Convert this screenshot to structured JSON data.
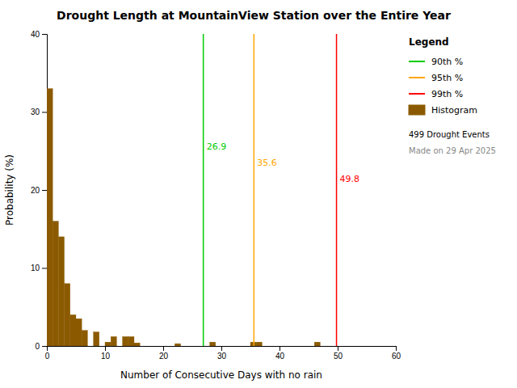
{
  "chart_data": {
    "type": "histogram",
    "title": "Drought Length at MountainView Station over the Entire Year",
    "x_label": "Number of Consecutive Days with no rain",
    "y_label": "Probability (%)",
    "name": "Histogram",
    "color": "#8B5A00",
    "bins": [
      0,
      1,
      2,
      3,
      4,
      5,
      6,
      7,
      8,
      9,
      10,
      11,
      12,
      13,
      14,
      15,
      16,
      17,
      18,
      19,
      20,
      21,
      22,
      23,
      24,
      25,
      26,
      27,
      28,
      29,
      30,
      31,
      32,
      33,
      34,
      35,
      36,
      37,
      38,
      39,
      40,
      41,
      42,
      43,
      44,
      45,
      46,
      47,
      48,
      49,
      50,
      51,
      52,
      53,
      54,
      55,
      56,
      57,
      58,
      59,
      60
    ],
    "values": [
      33.0,
      16.0,
      14.0,
      8.0,
      4.0,
      3.5,
      2.0,
      0.0,
      1.8,
      0.0,
      0.5,
      1.2,
      0.0,
      1.2,
      1.2,
      0.4,
      0.0,
      0.0,
      0.0,
      0.0,
      0.0,
      0.0,
      0.3,
      0.0,
      0.0,
      0.0,
      0.0,
      0.0,
      0.5,
      0.0,
      0.0,
      0.0,
      0.0,
      0.0,
      0.0,
      0.5,
      0.5,
      0.0,
      0.0,
      0.0,
      0.0,
      0.0,
      0.0,
      0.0,
      0.0,
      0.0,
      0.5,
      0.0,
      0.0,
      0.0,
      0.0,
      0.0,
      0.0,
      0.0,
      0.0,
      0.0,
      0.0,
      0.0,
      0.0,
      0.0
    ],
    "vlines": [
      {
        "name": "90th %",
        "value": 26.9,
        "label": "26.9",
        "color": "#00CC00"
      },
      {
        "name": "95th %",
        "value": 35.6,
        "label": "35.6",
        "color": "#FFA500"
      },
      {
        "name": "99th %",
        "value": 49.8,
        "label": "49.8",
        "color": "#FF0000"
      }
    ],
    "xlim": [
      0,
      60
    ],
    "ylim": [
      0,
      40
    ],
    "xticks": [
      0,
      10,
      20,
      30,
      40,
      50,
      60
    ],
    "yticks": [
      0,
      10,
      20,
      30,
      40
    ],
    "grid": false,
    "legend": "upper right",
    "legend_title": "Legend",
    "annotations": [
      "499 Drought Events",
      "Made on 29 Apr 2025"
    ]
  }
}
